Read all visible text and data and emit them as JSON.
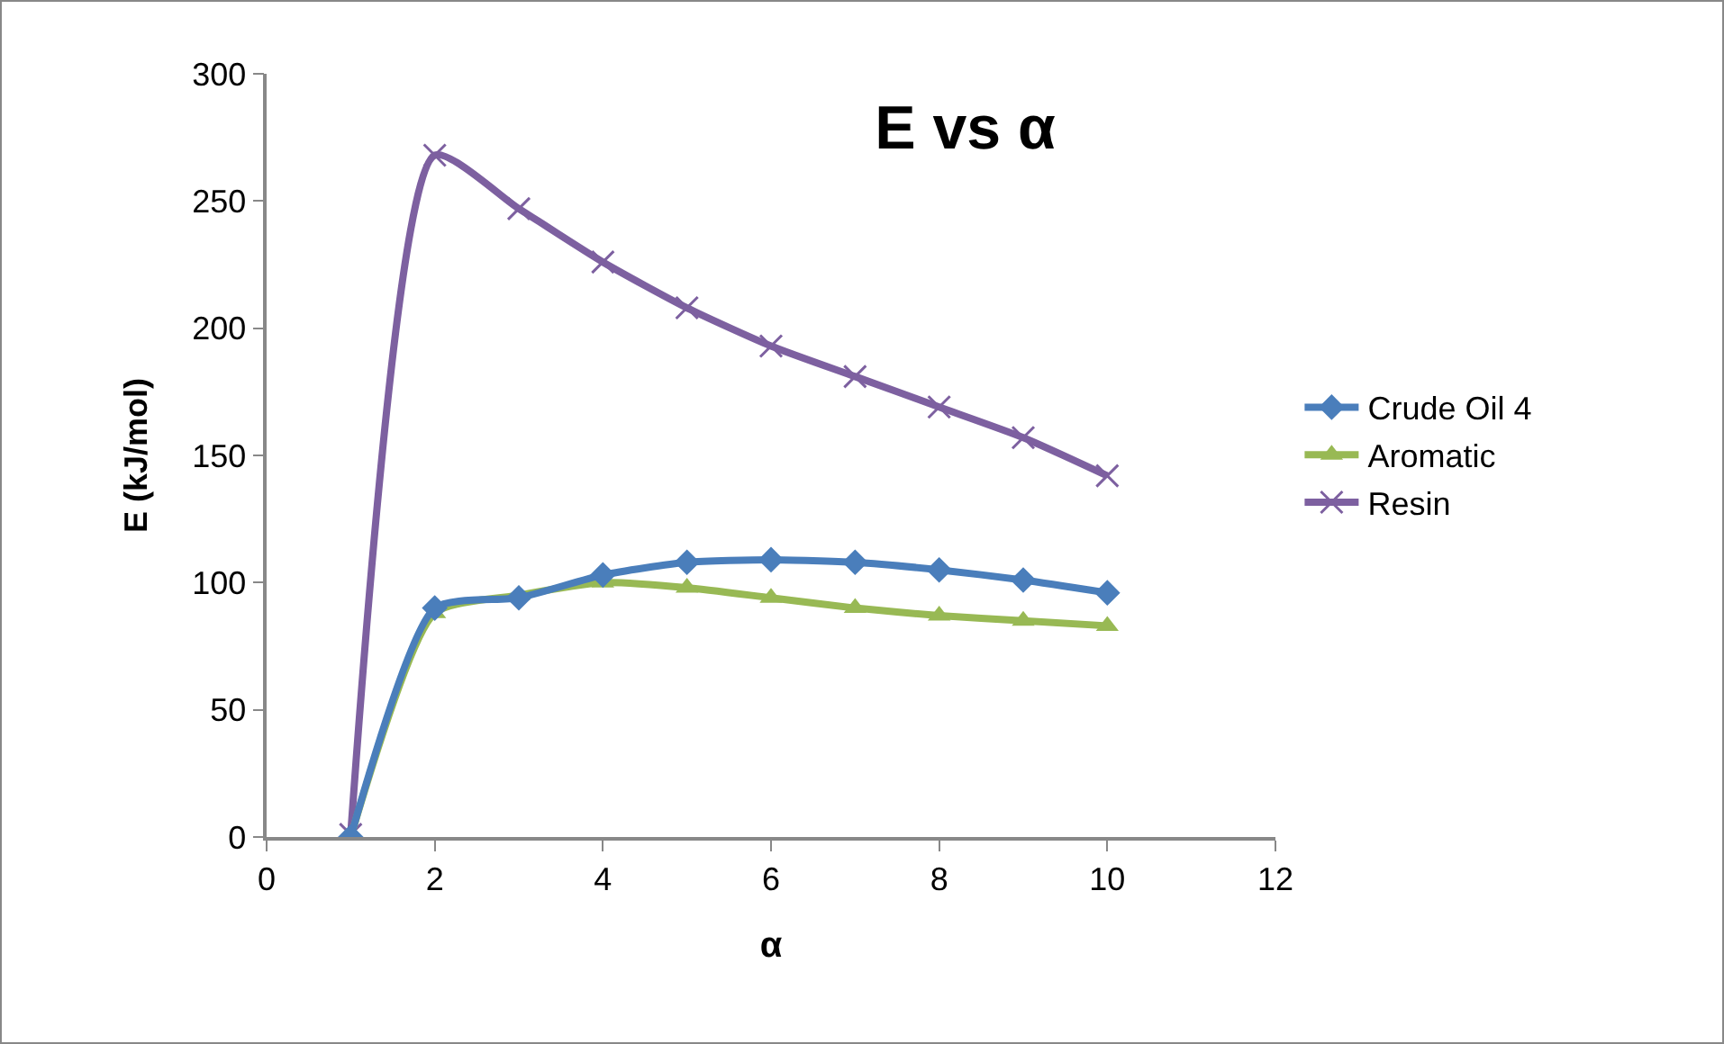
{
  "chart_data": {
    "type": "line",
    "title": "E vs α",
    "xlabel": "α",
    "ylabel": "E (kJ/mol)",
    "x": [
      1,
      2,
      3,
      4,
      5,
      6,
      7,
      8,
      9,
      10
    ],
    "series": [
      {
        "name": "Crude Oil 4",
        "color": "#4a7ebb",
        "marker": "diamond",
        "values": [
          0,
          90,
          94,
          103,
          108,
          109,
          108,
          105,
          101,
          96
        ]
      },
      {
        "name": "Aromatic",
        "color": "#98b954",
        "marker": "triangle",
        "values": [
          0,
          88,
          95,
          100,
          98,
          94,
          90,
          87,
          85,
          83
        ]
      },
      {
        "name": "Resin",
        "color": "#7d60a0",
        "marker": "cross",
        "values": [
          1,
          268,
          247,
          226,
          208,
          193,
          181,
          169,
          157,
          142
        ]
      }
    ],
    "xlim": [
      0,
      12
    ],
    "xticks": [
      0,
      2,
      4,
      6,
      8,
      10,
      12
    ],
    "ylim": [
      0,
      300
    ],
    "yticks": [
      0,
      50,
      100,
      150,
      200,
      250,
      300
    ],
    "grid": false,
    "legend": "right",
    "line_style": "solid"
  }
}
